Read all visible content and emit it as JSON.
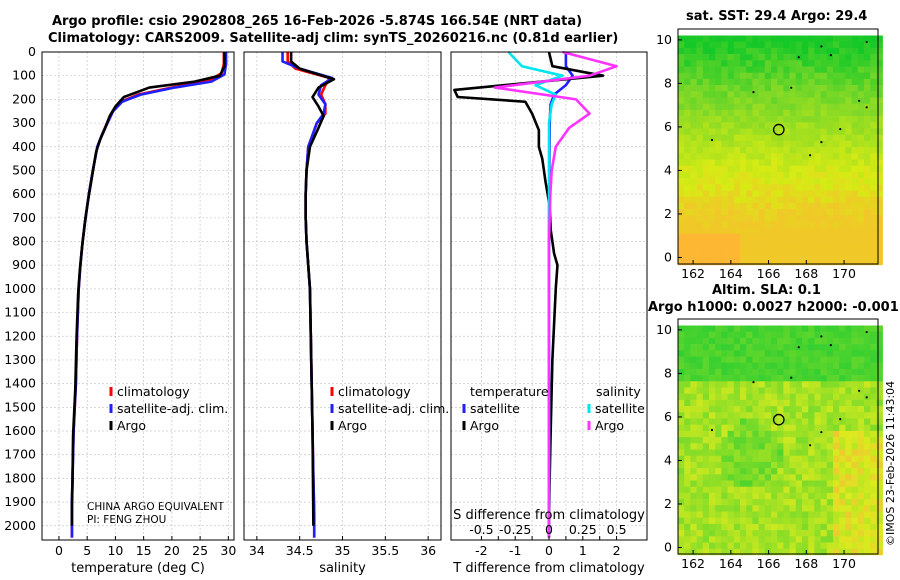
{
  "titles": {
    "line1": "Argo profile: csio 2902808_265 16-Feb-2026 -5.874S 166.54E (NRT data)",
    "line2": "Climatology: CARS2009. Satellite-adj clim: synTS_20260216.nc (0.81d earlier)",
    "footer1": "CHINA ARGO EQUIVALENT",
    "footer2": "PI: FENG ZHOU",
    "stamp": "©IMOS 23-Feb-2026 11:43:04"
  },
  "colors": {
    "climatology": "#ff0000",
    "satellite": "#1f1fff",
    "argo": "#000000",
    "sal_satellite": "#00e5ee",
    "sal_argo": "#ff33ff",
    "grid": "#c8c8c8"
  },
  "chart_data": [
    {
      "type": "line",
      "id": "temperature",
      "xlabel": "temperature (deg C)",
      "ylabel": "",
      "xlim": [
        -3,
        31
      ],
      "ylim": [
        0,
        2060
      ],
      "xticks": [
        0,
        5,
        10,
        15,
        20,
        25,
        30
      ],
      "yticks": [
        0,
        100,
        200,
        300,
        400,
        500,
        600,
        700,
        800,
        900,
        1000,
        1100,
        1200,
        1300,
        1400,
        1500,
        1600,
        1700,
        1800,
        1900,
        2000
      ],
      "legend": {
        "position": "bottom-right",
        "labels": [
          "climatology",
          "satellite-adj. clim.",
          "Argo"
        ]
      },
      "series": [
        {
          "name": "climatology",
          "x": [
            29.2,
            29.2,
            28.8,
            26.5,
            20,
            14,
            11,
            9.5,
            8.5,
            7.6,
            6.8,
            6.0,
            5.3,
            4.7,
            4.2,
            3.8,
            3.5,
            3.2,
            3.0,
            2.8,
            2.6,
            2.5,
            2.4,
            2.3,
            2.3
          ],
          "y": [
            0,
            50,
            90,
            120,
            150,
            180,
            210,
            250,
            300,
            350,
            400,
            500,
            600,
            700,
            800,
            900,
            1000,
            1200,
            1400,
            1500,
            1600,
            1700,
            1800,
            1900,
            2050
          ]
        },
        {
          "name": "satellite-adj. clim.",
          "x": [
            29.6,
            29.6,
            29.3,
            27,
            20.5,
            14.5,
            11.2,
            9.6,
            8.6,
            7.6,
            6.8,
            6.0,
            5.3,
            4.7,
            4.2,
            3.8,
            3.5,
            3.2,
            3.0,
            2.8,
            2.6,
            2.5,
            2.4,
            2.3,
            2.3
          ],
          "y": [
            0,
            50,
            95,
            125,
            150,
            180,
            210,
            250,
            300,
            350,
            400,
            500,
            600,
            700,
            800,
            900,
            1000,
            1200,
            1400,
            1500,
            1600,
            1700,
            1800,
            1900,
            2050
          ]
        },
        {
          "name": "Argo",
          "x": [
            29.3,
            29.3,
            28.5,
            24,
            16,
            11.5,
            10,
            9,
            8.2,
            7.3,
            6.6,
            5.9,
            5.2,
            4.6,
            4.1,
            3.7,
            3.4,
            3.1,
            2.9,
            2.7,
            2.5,
            2.4,
            2.3,
            2.3
          ],
          "y": [
            0,
            60,
            100,
            125,
            150,
            190,
            230,
            270,
            320,
            370,
            420,
            520,
            620,
            720,
            820,
            920,
            1020,
            1220,
            1420,
            1520,
            1620,
            1820,
            1920,
            2000
          ]
        }
      ]
    },
    {
      "type": "line",
      "id": "salinity",
      "xlabel": "salinity",
      "ylabel": "",
      "xlim": [
        33.85,
        36.15
      ],
      "ylim": [
        0,
        2060
      ],
      "xticks": [
        34,
        34.5,
        35,
        35.5,
        36
      ],
      "legend": {
        "position": "bottom-right",
        "labels": [
          "climatology",
          "satellite-adj. clim.",
          "Argo"
        ]
      },
      "series": [
        {
          "name": "climatology",
          "x": [
            34.36,
            34.36,
            34.45,
            34.85,
            34.8,
            34.75,
            34.8,
            34.8,
            34.7,
            34.6,
            34.58,
            34.57,
            34.57,
            34.58,
            34.6,
            34.62,
            34.63,
            34.64,
            34.65,
            34.66,
            34.67,
            34.67
          ],
          "y": [
            0,
            40,
            70,
            110,
            140,
            180,
            220,
            260,
            300,
            400,
            500,
            600,
            700,
            800,
            900,
            1000,
            1200,
            1400,
            1600,
            1800,
            1950,
            2050
          ]
        },
        {
          "name": "satellite-adj. clim.",
          "x": [
            34.3,
            34.3,
            34.5,
            34.88,
            34.75,
            34.72,
            34.8,
            34.78,
            34.7,
            34.6,
            34.58,
            34.57,
            34.57,
            34.58,
            34.6,
            34.62,
            34.63,
            34.64,
            34.65,
            34.66,
            34.67,
            34.67
          ],
          "y": [
            0,
            40,
            70,
            110,
            140,
            180,
            220,
            260,
            300,
            400,
            500,
            600,
            700,
            800,
            900,
            1000,
            1200,
            1400,
            1600,
            1800,
            1950,
            2050
          ]
        },
        {
          "name": "Argo",
          "x": [
            34.4,
            34.4,
            34.5,
            34.9,
            34.72,
            34.65,
            34.72,
            34.78,
            34.72,
            34.62,
            34.58,
            34.57,
            34.57,
            34.58,
            34.6,
            34.62,
            34.63,
            34.64,
            34.65,
            34.66
          ],
          "y": [
            0,
            40,
            70,
            115,
            150,
            190,
            230,
            270,
            320,
            400,
            500,
            600,
            700,
            800,
            900,
            1000,
            1200,
            1400,
            1600,
            2000
          ]
        }
      ]
    },
    {
      "type": "line",
      "id": "differences",
      "xlabel": "T difference from climatology",
      "xlabel_top": "S difference from climatology",
      "xlim": [
        -2.9,
        2.9
      ],
      "ylim": [
        0,
        2060
      ],
      "xticks": [
        -2,
        -1.5,
        -1,
        -0.5,
        0,
        0.5,
        1,
        1.5,
        2
      ],
      "xticklabels": [
        "-2",
        "",
        "-1",
        "",
        "0",
        "",
        "1",
        "",
        "2"
      ],
      "sticks": [
        "-0.5",
        "-0.25",
        "0",
        "0.25",
        "0.5"
      ],
      "legend_titles": {
        "temperature": "temperature",
        "salinity": "salinity"
      },
      "legend": {
        "temperature": [
          "satellite",
          "Argo"
        ],
        "salinity": [
          "satellite",
          "Argo"
        ]
      },
      "series": [
        {
          "name": "temperature satellite",
          "x": [
            0.5,
            0.5,
            0.7,
            0.5,
            0.15,
            0.05,
            0.02,
            0.01,
            0,
            0,
            0,
            0
          ],
          "y": [
            0,
            60,
            100,
            140,
            180,
            220,
            300,
            500,
            800,
            1200,
            1600,
            2050
          ]
        },
        {
          "name": "temperature Argo",
          "x": [
            0,
            0.1,
            1.6,
            -2.8,
            -2.7,
            -0.7,
            -0.5,
            -0.3,
            -0.3,
            -0.2,
            -0.1,
            0.02,
            0.05,
            0.1,
            0.15,
            0.25,
            0.2,
            0.1,
            0.05,
            0.02,
            0
          ],
          "y": [
            0,
            60,
            100,
            160,
            190,
            210,
            260,
            330,
            400,
            450,
            550,
            650,
            750,
            800,
            850,
            900,
            1000,
            1300,
            1600,
            1800,
            2000
          ]
        },
        {
          "name": "salinity satellite",
          "x": [
            -0.3,
            -0.2,
            0.1,
            -0.1,
            0.05,
            0.02,
            0,
            0,
            0,
            0,
            0,
            0
          ],
          "y": [
            0,
            60,
            100,
            140,
            180,
            220,
            300,
            500,
            800,
            1200,
            1600,
            2050
          ]
        },
        {
          "name": "salinity Argo",
          "x": [
            0.1,
            0.5,
            0.3,
            -0.4,
            0.2,
            0.3,
            0.15,
            0.05,
            0.02,
            0.01,
            0,
            0,
            0,
            0
          ],
          "y": [
            0,
            60,
            100,
            150,
            200,
            260,
            320,
            400,
            500,
            600,
            800,
            1200,
            1600,
            2050
          ]
        }
      ]
    },
    {
      "type": "heatmap",
      "id": "sst_map",
      "title": "sat. SST: 29.4 Argo: 29.4",
      "xticks": [
        162,
        164,
        166,
        168,
        170
      ],
      "yticks": [
        0,
        2,
        4,
        6,
        8,
        10
      ],
      "xlim": [
        161.2,
        171.8
      ],
      "ylim": [
        -0.3,
        10.5
      ],
      "marker": {
        "lon": 166.54,
        "lat": 5.874
      }
    },
    {
      "type": "heatmap",
      "id": "sla_map",
      "title": "Altim. SLA: 0.1",
      "subtitle": "Argo h1000: 0.0027 h2000: -0.001",
      "xticks": [
        162,
        164,
        166,
        168,
        170
      ],
      "yticks": [
        0,
        2,
        4,
        6,
        8,
        10
      ],
      "xlim": [
        161.2,
        171.8
      ],
      "ylim": [
        -0.3,
        10.5
      ],
      "marker": {
        "lon": 166.54,
        "lat": 5.874
      }
    }
  ]
}
